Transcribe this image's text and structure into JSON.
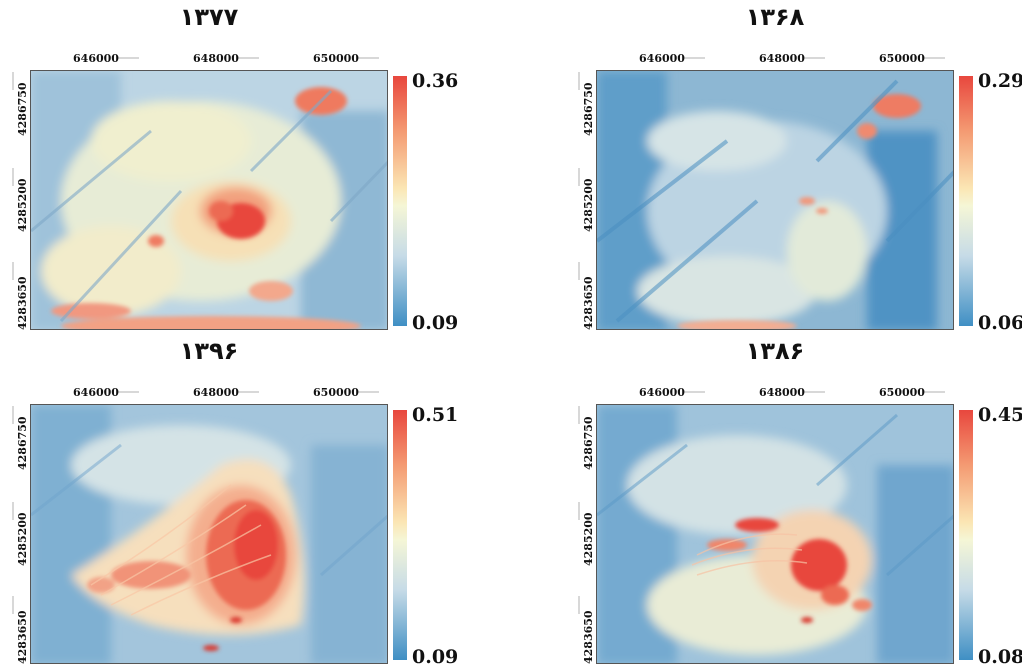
{
  "panels": [
    {
      "title": "۱۳۷۷",
      "colorbar_max": "0.36",
      "colorbar_min": "0.09"
    },
    {
      "title": "۱۳۶۸",
      "colorbar_max": "0.29",
      "colorbar_min": "0.06"
    },
    {
      "title": "۱۳۹۶",
      "colorbar_max": "0.51",
      "colorbar_min": "0.09"
    },
    {
      "title": "۱۳۸۶",
      "colorbar_max": "0.45",
      "colorbar_min": "0.08"
    }
  ],
  "x_ticks": [
    "646000",
    "648000",
    "650000"
  ],
  "y_ticks": [
    "4286750",
    "4285200",
    "4283650"
  ],
  "colors": {
    "high": "#e8473e",
    "mid": "#f5f6d6",
    "low": "#3f8fc4"
  }
}
